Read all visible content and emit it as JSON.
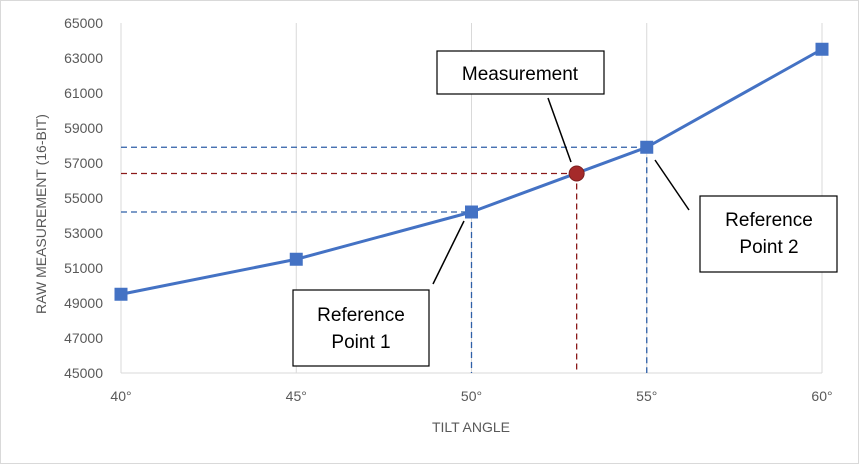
{
  "chart_data": {
    "type": "line",
    "x_categories": [
      "40°",
      "45°",
      "50°",
      "55°",
      "60°"
    ],
    "series": [
      {
        "x": [
          40,
          45,
          50,
          55,
          60
        ],
        "y": [
          49500,
          51500,
          54200,
          57900,
          63500
        ]
      }
    ],
    "measurement": {
      "x": 53,
      "y": 56400
    },
    "xlabel": "TILT ANGLE",
    "ylabel": "RAW MEASUREMENT (16-BIT)",
    "xlim": [
      40,
      60
    ],
    "ylim": [
      45000,
      65000
    ],
    "y_ticks": [
      "45000",
      "47000",
      "49000",
      "51000",
      "53000",
      "55000",
      "57000",
      "59000",
      "61000",
      "63000",
      "65000"
    ],
    "grid": "vertical",
    "annotations": {
      "measurement": [
        "Measurement"
      ],
      "ref1": [
        "Reference",
        "Point 1"
      ],
      "ref2": [
        "Reference",
        "Point 2"
      ]
    },
    "colors": {
      "series": "#4472c4",
      "measurement": "#a52a2a",
      "reference_guides": "#2e5fa8",
      "measurement_guides": "#8b1a1a",
      "grid": "#d9d9d9",
      "text": "#595959"
    }
  }
}
